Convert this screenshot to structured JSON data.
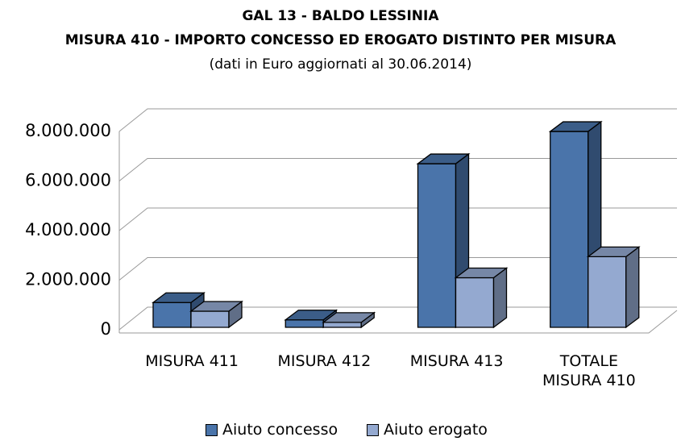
{
  "chart_data": {
    "type": "bar3d",
    "title": "GAL 13 -  BALDO LESSINIA",
    "subtitle": "MISURA 410  - IMPORTO CONCESSO ED EROGATO DISTINTO PER MISURA",
    "note": "(dati  in Euro aggiornati al 30.06.2014)",
    "categories": [
      "MISURA 411",
      "MISURA 412",
      "MISURA 413",
      "TOTALE MISURA 410"
    ],
    "series": [
      {
        "name": "Aiuto concesso",
        "color": "#4a74aa",
        "values": [
          1000000,
          300000,
          6600000,
          7900000
        ]
      },
      {
        "name": "Aiuto erogato",
        "color": "#94a9d0",
        "values": [
          650000,
          200000,
          2000000,
          2850000
        ]
      }
    ],
    "ylim": [
      0,
      8000000
    ],
    "yticks": [
      0,
      {
        "value": 2000000,
        "label": "2.000.000"
      },
      {
        "value": 4000000,
        "label": "4.000.000"
      },
      {
        "value": 6000000,
        "label": "6.000.000"
      },
      {
        "value": 8000000,
        "label": "8.000.000"
      }
    ],
    "grid": true,
    "legend": "bottom"
  }
}
